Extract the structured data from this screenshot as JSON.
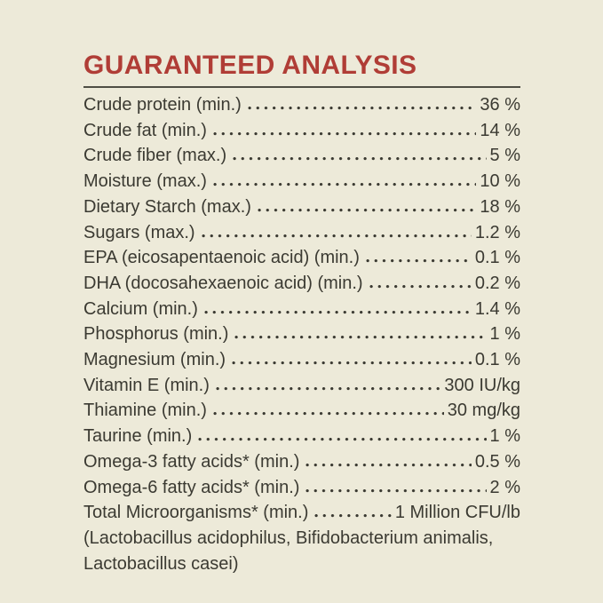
{
  "colors": {
    "background": "#EDEAD9",
    "accent_red": "#B03D36",
    "text": "#3B3A32",
    "divider": "#4E4E44"
  },
  "title": "GUARANTEED ANALYSIS",
  "analysis": {
    "rows": [
      {
        "label": "Crude protein (min.)",
        "value": "36 %"
      },
      {
        "label": "Crude fat (min.)",
        "value": "14 %"
      },
      {
        "label": "Crude fiber (max.)",
        "value": "5 %"
      },
      {
        "label": "Moisture (max.)",
        "value": "10 %"
      },
      {
        "label": "Dietary Starch (max.)",
        "value": "18 %"
      },
      {
        "label": "Sugars (max.)",
        "value": "1.2 %"
      },
      {
        "label": "EPA (eicosapentaenoic acid) (min.)",
        "value": "0.1 %"
      },
      {
        "label": "DHA (docosahexaenoic acid) (min.)",
        "value": "0.2 %"
      },
      {
        "label": "Calcium (min.)",
        "value": "1.4 %"
      },
      {
        "label": "Phosphorus (min.)",
        "value": "1 %"
      },
      {
        "label": "Magnesium (min.)",
        "value": "0.1 %"
      },
      {
        "label": "Vitamin E (min.)",
        "value": "300 IU/kg"
      },
      {
        "label": "Thiamine (min.)",
        "value": "30 mg/kg"
      },
      {
        "label": "Taurine (min.)",
        "value": "1 %"
      },
      {
        "label": "Omega-3 fatty acids* (min.)",
        "value": "0.5 %"
      },
      {
        "label": "Omega-6 fatty acids* (min.)",
        "value": "2 %"
      },
      {
        "label": "Total Microorganisms* (min.)",
        "value": "1 Million CFU/lb"
      }
    ],
    "footnote_lines": [
      "(Lactobacillus acidophilus, Bifidobacterium animalis,",
      "Lactobacillus casei)"
    ]
  }
}
